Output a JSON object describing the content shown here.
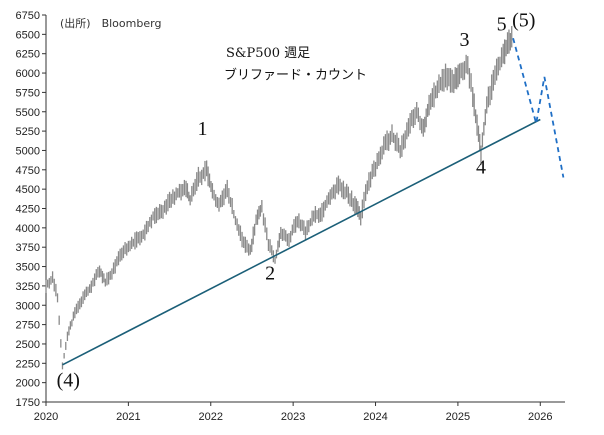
{
  "source": "(出所)　Bloomberg",
  "chart_data": {
    "type": "line",
    "title": "S&P500 週足",
    "subtitle": "ブリファード・カウント",
    "xlabel": "",
    "ylabel": "",
    "xlim": [
      2020.0,
      2026.3
    ],
    "ylim": [
      1750,
      6750
    ],
    "grid": false,
    "x_ticks": [
      "2020",
      "2021",
      "2022",
      "2023",
      "2024",
      "2025",
      "2026"
    ],
    "y_ticks": [
      "1750",
      "2000",
      "2250",
      "2500",
      "2750",
      "3000",
      "3250",
      "3500",
      "3750",
      "4000",
      "4250",
      "4500",
      "4750",
      "5000",
      "5250",
      "5500",
      "5750",
      "6000",
      "6250",
      "6500",
      "6750"
    ],
    "series": [
      {
        "style": "price",
        "color": "#8a8a8a",
        "points": [
          [
            2020.0,
            3250
          ],
          [
            2020.08,
            3350
          ],
          [
            2020.14,
            3100
          ],
          [
            2020.2,
            2230
          ],
          [
            2020.26,
            2600
          ],
          [
            2020.35,
            2900
          ],
          [
            2020.45,
            3100
          ],
          [
            2020.55,
            3250
          ],
          [
            2020.65,
            3450
          ],
          [
            2020.72,
            3300
          ],
          [
            2020.8,
            3400
          ],
          [
            2020.9,
            3650
          ],
          [
            2021.0,
            3750
          ],
          [
            2021.1,
            3850
          ],
          [
            2021.2,
            3950
          ],
          [
            2021.3,
            4150
          ],
          [
            2021.4,
            4200
          ],
          [
            2021.5,
            4350
          ],
          [
            2021.6,
            4450
          ],
          [
            2021.7,
            4500
          ],
          [
            2021.75,
            4350
          ],
          [
            2021.85,
            4650
          ],
          [
            2021.95,
            4750
          ],
          [
            2022.02,
            4450
          ],
          [
            2022.1,
            4300
          ],
          [
            2022.2,
            4500
          ],
          [
            2022.3,
            4100
          ],
          [
            2022.4,
            3800
          ],
          [
            2022.48,
            3700
          ],
          [
            2022.55,
            4100
          ],
          [
            2022.62,
            4250
          ],
          [
            2022.7,
            3800
          ],
          [
            2022.78,
            3580
          ],
          [
            2022.85,
            3950
          ],
          [
            2022.95,
            3850
          ],
          [
            2023.05,
            4100
          ],
          [
            2023.15,
            3950
          ],
          [
            2023.25,
            4150
          ],
          [
            2023.35,
            4200
          ],
          [
            2023.45,
            4400
          ],
          [
            2023.55,
            4550
          ],
          [
            2023.65,
            4450
          ],
          [
            2023.75,
            4300
          ],
          [
            2023.82,
            4150
          ],
          [
            2023.9,
            4550
          ],
          [
            2024.0,
            4780
          ],
          [
            2024.1,
            5050
          ],
          [
            2024.2,
            5200
          ],
          [
            2024.3,
            5000
          ],
          [
            2024.4,
            5300
          ],
          [
            2024.5,
            5500
          ],
          [
            2024.58,
            5250
          ],
          [
            2024.65,
            5600
          ],
          [
            2024.75,
            5800
          ],
          [
            2024.85,
            5950
          ],
          [
            2024.95,
            5900
          ],
          [
            2025.02,
            6000
          ],
          [
            2025.12,
            6100
          ],
          [
            2025.18,
            5700
          ],
          [
            2025.25,
            5200
          ],
          [
            2025.28,
            4950
          ],
          [
            2025.35,
            5600
          ],
          [
            2025.45,
            5950
          ],
          [
            2025.55,
            6250
          ],
          [
            2025.62,
            6400
          ],
          [
            2025.67,
            6450
          ]
        ]
      },
      {
        "style": "trendline",
        "color": "#1b5f78",
        "points": [
          [
            2020.2,
            2230
          ],
          [
            2026.0,
            5400
          ]
        ]
      },
      {
        "style": "projection",
        "color": "#1f6fc6",
        "points": [
          [
            2025.67,
            6450
          ],
          [
            2025.95,
            5350
          ],
          [
            2026.05,
            5950
          ],
          [
            2026.28,
            4650
          ]
        ]
      }
    ],
    "annotations": [
      {
        "text": "1",
        "x": 2021.9,
        "y": 5200
      },
      {
        "text": "2",
        "x": 2022.72,
        "y": 3330
      },
      {
        "text": "3",
        "x": 2025.08,
        "y": 6350
      },
      {
        "text": "4",
        "x": 2025.28,
        "y": 4700
      },
      {
        "text": "5",
        "x": 2025.53,
        "y": 6550
      },
      {
        "text": "(5)",
        "x": 2025.8,
        "y": 6600
      },
      {
        "text": "(4)",
        "x": 2020.27,
        "y": 1950
      }
    ]
  }
}
